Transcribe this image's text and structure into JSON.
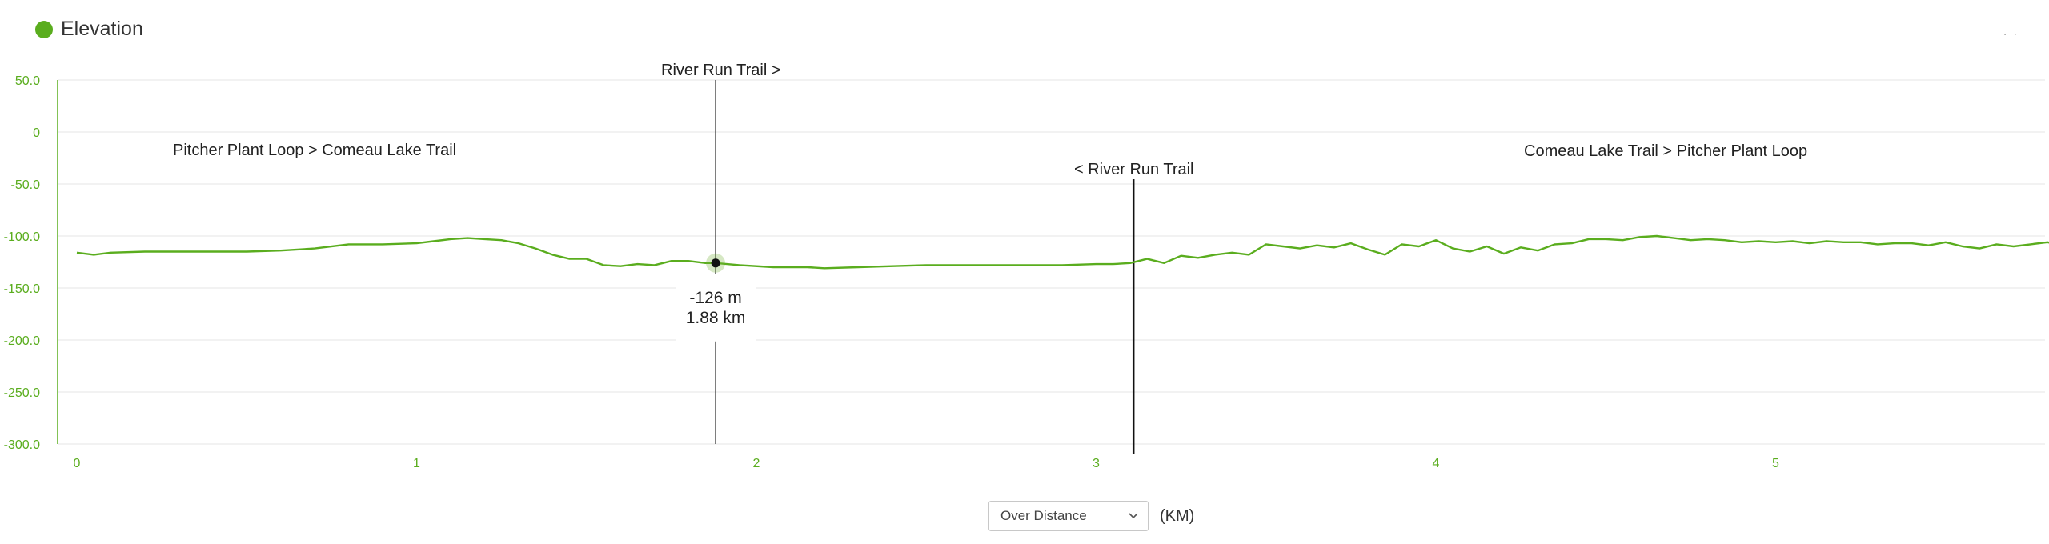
{
  "header": {
    "title": "Elevation",
    "series_color": "#5aad1e",
    "corner_mark": "· ·"
  },
  "controls": {
    "mode_select": "Over Distance",
    "unit_label": "(KM)"
  },
  "chart_data": {
    "type": "line",
    "title": "",
    "xlabel": "",
    "ylabel": "",
    "x_ticks": [
      "0",
      "1",
      "2",
      "3",
      "4",
      "5"
    ],
    "x_tick_values": [
      0,
      1,
      2,
      3,
      4,
      5
    ],
    "y_ticks": [
      "50.0",
      "0",
      "-50.0",
      "-100.0",
      "-150.0",
      "-200.0",
      "-250.0",
      "-300.0"
    ],
    "y_tick_values": [
      50,
      0,
      -50,
      -100,
      -150,
      -200,
      -250,
      -300
    ],
    "xlim": [
      0,
      5.85
    ],
    "ylim": [
      -300,
      50
    ],
    "grid": true,
    "colors": {
      "line": "#5aad1e",
      "axis": "#5aad1e",
      "grid": "#e4e4e4",
      "tick_text": "#5aad1e"
    },
    "series": [
      {
        "x": [
          0,
          0.05,
          0.1,
          0.2,
          0.3,
          0.4,
          0.5,
          0.6,
          0.7,
          0.8,
          0.9,
          1.0,
          1.05,
          1.1,
          1.15,
          1.2,
          1.25,
          1.3,
          1.35,
          1.4,
          1.45,
          1.5,
          1.55,
          1.6,
          1.65,
          1.7,
          1.75,
          1.8,
          1.85,
          1.88,
          1.95,
          2.05,
          2.15,
          2.2,
          2.3,
          2.4,
          2.5,
          2.6,
          2.7,
          2.8,
          2.9,
          3.0,
          3.05,
          3.1,
          3.15,
          3.2,
          3.25,
          3.3,
          3.35,
          3.4,
          3.45,
          3.5,
          3.55,
          3.6,
          3.65,
          3.7,
          3.75,
          3.8,
          3.85,
          3.9,
          3.95,
          4.0,
          4.05,
          4.1,
          4.15,
          4.2,
          4.25,
          4.3,
          4.35,
          4.4,
          4.45,
          4.5,
          4.55,
          4.6,
          4.65,
          4.7,
          4.75,
          4.8,
          4.85,
          4.9,
          4.95,
          5.0,
          5.05,
          5.1,
          5.15,
          5.2,
          5.25,
          5.3,
          5.35,
          5.4,
          5.45,
          5.5,
          5.55,
          5.6,
          5.65,
          5.7,
          5.75,
          5.8,
          5.85
        ],
        "values": [
          -116,
          -118,
          -116,
          -115,
          -115,
          -115,
          -115,
          -114,
          -112,
          -108,
          -108,
          -107,
          -105,
          -103,
          -102,
          -103,
          -104,
          -107,
          -112,
          -118,
          -122,
          -122,
          -128,
          -129,
          -127,
          -128,
          -124,
          -124,
          -126,
          -126,
          -128,
          -130,
          -130,
          -131,
          -130,
          -129,
          -128,
          -128,
          -128,
          -128,
          -128,
          -127,
          -127,
          -126,
          -122,
          -126,
          -119,
          -121,
          -118,
          -116,
          -118,
          -108,
          -110,
          -112,
          -109,
          -111,
          -107,
          -113,
          -118,
          -108,
          -110,
          -104,
          -112,
          -115,
          -110,
          -117,
          -111,
          -114,
          -108,
          -107,
          -103,
          -103,
          -104,
          -101,
          -100,
          -102,
          -104,
          -103,
          -104,
          -106,
          -105,
          -106,
          -105,
          -107,
          -105,
          -106,
          -106,
          -108,
          -107,
          -107,
          -109,
          -106,
          -110,
          -112,
          -108,
          -110,
          -108,
          -106,
          -110
        ]
      }
    ],
    "annotations": [
      {
        "label": "Pitcher Plant Loop > Comeau Lake Trail",
        "x": 0.7
      },
      {
        "label": "River Run Trail >",
        "x": 1.88
      },
      {
        "label": "< River Run Trail",
        "x": 3.11
      },
      {
        "label": "Comeau Lake Trail > Pitcher Plant Loop",
        "x": 4.7
      }
    ],
    "hover": {
      "x": 1.88,
      "y": -126,
      "elevation_label": "-126 m",
      "distance_label": "1.88 km"
    }
  }
}
